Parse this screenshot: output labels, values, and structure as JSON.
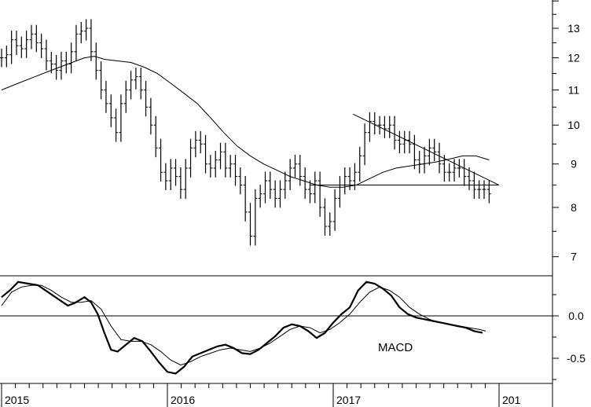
{
  "chart_data": [
    {
      "type": "bar",
      "subtype": "ohlc-weekly-price",
      "overlays": [
        "moving-average",
        "downtrend-line",
        "support-line"
      ],
      "y_scale": "log",
      "ylim": [
        6.6,
        14.2
      ],
      "y_ticks": [
        7,
        8,
        9,
        10,
        11,
        12,
        13
      ],
      "x_labels": [
        "2015",
        "2016",
        "2017",
        "201"
      ],
      "x_range": [
        2015.0,
        2018.0
      ],
      "price_path": [
        [
          2015.0,
          12.0
        ],
        [
          2015.03,
          12.1
        ],
        [
          2015.06,
          12.6
        ],
        [
          2015.09,
          12.4
        ],
        [
          2015.12,
          12.3
        ],
        [
          2015.15,
          12.6
        ],
        [
          2015.18,
          12.8
        ],
        [
          2015.21,
          12.5
        ],
        [
          2015.24,
          12.3
        ],
        [
          2015.27,
          11.9
        ],
        [
          2015.3,
          11.8
        ],
        [
          2015.33,
          11.6
        ],
        [
          2015.36,
          11.9
        ],
        [
          2015.39,
          11.8
        ],
        [
          2015.42,
          12.2
        ],
        [
          2015.45,
          12.8
        ],
        [
          2015.48,
          12.9
        ],
        [
          2015.51,
          13.0
        ],
        [
          2015.54,
          12.2
        ],
        [
          2015.57,
          11.6
        ],
        [
          2015.6,
          11.0
        ],
        [
          2015.63,
          10.6
        ],
        [
          2015.66,
          10.2
        ],
        [
          2015.69,
          9.8
        ],
        [
          2015.72,
          10.6
        ],
        [
          2015.75,
          11.0
        ],
        [
          2015.78,
          11.3
        ],
        [
          2015.81,
          11.4
        ],
        [
          2015.84,
          11.0
        ],
        [
          2015.87,
          10.5
        ],
        [
          2015.9,
          10.0
        ],
        [
          2015.93,
          9.4
        ],
        [
          2015.96,
          8.8
        ],
        [
          2015.99,
          8.6
        ],
        [
          2016.02,
          8.9
        ],
        [
          2016.05,
          8.7
        ],
        [
          2016.08,
          8.4
        ],
        [
          2016.11,
          8.9
        ],
        [
          2016.14,
          9.4
        ],
        [
          2016.17,
          9.6
        ],
        [
          2016.2,
          9.5
        ],
        [
          2016.23,
          9.0
        ],
        [
          2016.26,
          8.9
        ],
        [
          2016.29,
          9.1
        ],
        [
          2016.32,
          9.3
        ],
        [
          2016.35,
          8.9
        ],
        [
          2016.38,
          9.0
        ],
        [
          2016.41,
          8.7
        ],
        [
          2016.44,
          8.5
        ],
        [
          2016.47,
          7.9
        ],
        [
          2016.5,
          7.4
        ],
        [
          2016.53,
          8.2
        ],
        [
          2016.56,
          8.3
        ],
        [
          2016.59,
          8.6
        ],
        [
          2016.62,
          8.4
        ],
        [
          2016.65,
          8.2
        ],
        [
          2016.68,
          8.4
        ],
        [
          2016.71,
          8.6
        ],
        [
          2016.74,
          8.9
        ],
        [
          2016.77,
          9.0
        ],
        [
          2016.8,
          8.7
        ],
        [
          2016.83,
          8.4
        ],
        [
          2016.86,
          8.3
        ],
        [
          2016.89,
          8.6
        ],
        [
          2016.92,
          8.0
        ],
        [
          2016.95,
          7.6
        ],
        [
          2016.98,
          7.7
        ],
        [
          2017.01,
          8.2
        ],
        [
          2017.04,
          8.5
        ],
        [
          2017.07,
          8.7
        ],
        [
          2017.1,
          8.6
        ],
        [
          2017.13,
          8.8
        ],
        [
          2017.16,
          9.2
        ],
        [
          2017.19,
          9.8
        ],
        [
          2017.22,
          10.1
        ],
        [
          2017.25,
          10.0
        ],
        [
          2017.28,
          10.0
        ],
        [
          2017.31,
          9.9
        ],
        [
          2017.34,
          10.0
        ],
        [
          2017.37,
          9.6
        ],
        [
          2017.4,
          9.5
        ],
        [
          2017.43,
          9.6
        ],
        [
          2017.46,
          9.5
        ],
        [
          2017.49,
          9.1
        ],
        [
          2017.52,
          9.0
        ],
        [
          2017.55,
          9.2
        ],
        [
          2017.58,
          9.4
        ],
        [
          2017.61,
          9.3
        ],
        [
          2017.64,
          9.0
        ],
        [
          2017.67,
          8.8
        ],
        [
          2017.7,
          8.8
        ],
        [
          2017.73,
          8.9
        ],
        [
          2017.76,
          8.9
        ],
        [
          2017.79,
          8.7
        ],
        [
          2017.82,
          8.6
        ],
        [
          2017.85,
          8.4
        ],
        [
          2017.88,
          8.4
        ],
        [
          2017.91,
          8.4
        ],
        [
          2017.94,
          8.3
        ]
      ],
      "moving_average": [
        [
          2015.0,
          11.0
        ],
        [
          2015.1,
          11.2
        ],
        [
          2015.2,
          11.4
        ],
        [
          2015.3,
          11.6
        ],
        [
          2015.4,
          11.8
        ],
        [
          2015.5,
          12.0
        ],
        [
          2015.56,
          12.05
        ],
        [
          2015.62,
          11.95
        ],
        [
          2015.7,
          11.9
        ],
        [
          2015.78,
          11.85
        ],
        [
          2015.86,
          11.7
        ],
        [
          2015.94,
          11.5
        ],
        [
          2016.02,
          11.2
        ],
        [
          2016.1,
          10.9
        ],
        [
          2016.18,
          10.6
        ],
        [
          2016.26,
          10.2
        ],
        [
          2016.34,
          9.8
        ],
        [
          2016.42,
          9.45
        ],
        [
          2016.5,
          9.2
        ],
        [
          2016.58,
          9.0
        ],
        [
          2016.66,
          8.85
        ],
        [
          2016.74,
          8.7
        ],
        [
          2016.82,
          8.6
        ],
        [
          2016.9,
          8.5
        ],
        [
          2016.98,
          8.45
        ],
        [
          2017.06,
          8.45
        ],
        [
          2017.14,
          8.5
        ],
        [
          2017.22,
          8.65
        ],
        [
          2017.3,
          8.8
        ],
        [
          2017.38,
          8.9
        ],
        [
          2017.46,
          8.95
        ],
        [
          2017.54,
          9.0
        ],
        [
          2017.62,
          9.05
        ],
        [
          2017.7,
          9.12
        ],
        [
          2017.78,
          9.2
        ],
        [
          2017.86,
          9.2
        ],
        [
          2017.94,
          9.1
        ]
      ],
      "downtrend_line": [
        [
          2017.12,
          10.3
        ],
        [
          2018.0,
          8.5
        ]
      ],
      "support_line": [
        [
          2016.86,
          8.5
        ],
        [
          2018.0,
          8.5
        ]
      ]
    },
    {
      "type": "line",
      "title": "MACD",
      "ylim": [
        -0.78,
        0.6
      ],
      "y_ticks": [
        0.0,
        -0.5
      ],
      "y_tick_labels": [
        "0.0",
        "-0.5"
      ],
      "zero_line": true,
      "series": [
        {
          "style": "thick",
          "points": [
            [
              2015.0,
              0.22
            ],
            [
              2015.05,
              0.3
            ],
            [
              2015.1,
              0.4
            ],
            [
              2015.16,
              0.38
            ],
            [
              2015.22,
              0.36
            ],
            [
              2015.28,
              0.28
            ],
            [
              2015.34,
              0.2
            ],
            [
              2015.4,
              0.12
            ],
            [
              2015.44,
              0.15
            ],
            [
              2015.5,
              0.22
            ],
            [
              2015.54,
              0.16
            ],
            [
              2015.58,
              0.02
            ],
            [
              2015.62,
              -0.2
            ],
            [
              2015.66,
              -0.4
            ],
            [
              2015.7,
              -0.42
            ],
            [
              2015.75,
              -0.34
            ],
            [
              2015.8,
              -0.26
            ],
            [
              2015.85,
              -0.3
            ],
            [
              2015.9,
              -0.42
            ],
            [
              2015.95,
              -0.55
            ],
            [
              2016.0,
              -0.66
            ],
            [
              2016.05,
              -0.68
            ],
            [
              2016.1,
              -0.6
            ],
            [
              2016.15,
              -0.48
            ],
            [
              2016.2,
              -0.44
            ],
            [
              2016.25,
              -0.4
            ],
            [
              2016.3,
              -0.36
            ],
            [
              2016.35,
              -0.34
            ],
            [
              2016.4,
              -0.38
            ],
            [
              2016.45,
              -0.44
            ],
            [
              2016.5,
              -0.45
            ],
            [
              2016.55,
              -0.4
            ],
            [
              2016.6,
              -0.32
            ],
            [
              2016.65,
              -0.24
            ],
            [
              2016.7,
              -0.14
            ],
            [
              2016.75,
              -0.1
            ],
            [
              2016.8,
              -0.12
            ],
            [
              2016.85,
              -0.18
            ],
            [
              2016.9,
              -0.26
            ],
            [
              2016.95,
              -0.2
            ],
            [
              2017.0,
              -0.08
            ],
            [
              2017.05,
              0.02
            ],
            [
              2017.1,
              0.1
            ],
            [
              2017.15,
              0.3
            ],
            [
              2017.2,
              0.4
            ],
            [
              2017.25,
              0.38
            ],
            [
              2017.3,
              0.32
            ],
            [
              2017.35,
              0.24
            ],
            [
              2017.4,
              0.1
            ],
            [
              2017.45,
              0.02
            ],
            [
              2017.5,
              -0.02
            ],
            [
              2017.55,
              -0.04
            ],
            [
              2017.6,
              -0.06
            ],
            [
              2017.65,
              -0.08
            ],
            [
              2017.7,
              -0.1
            ],
            [
              2017.75,
              -0.12
            ],
            [
              2017.8,
              -0.14
            ],
            [
              2017.85,
              -0.18
            ],
            [
              2017.9,
              -0.2
            ]
          ]
        },
        {
          "style": "thin",
          "points": [
            [
              2015.0,
              0.12
            ],
            [
              2015.06,
              0.28
            ],
            [
              2015.12,
              0.34
            ],
            [
              2015.18,
              0.36
            ],
            [
              2015.24,
              0.36
            ],
            [
              2015.3,
              0.3
            ],
            [
              2015.36,
              0.22
            ],
            [
              2015.42,
              0.16
            ],
            [
              2015.48,
              0.16
            ],
            [
              2015.54,
              0.18
            ],
            [
              2015.6,
              0.08
            ],
            [
              2015.66,
              -0.12
            ],
            [
              2015.72,
              -0.28
            ],
            [
              2015.78,
              -0.3
            ],
            [
              2015.84,
              -0.3
            ],
            [
              2015.9,
              -0.34
            ],
            [
              2015.96,
              -0.42
            ],
            [
              2016.02,
              -0.52
            ],
            [
              2016.08,
              -0.58
            ],
            [
              2016.14,
              -0.54
            ],
            [
              2016.2,
              -0.48
            ],
            [
              2016.26,
              -0.44
            ],
            [
              2016.32,
              -0.4
            ],
            [
              2016.38,
              -0.38
            ],
            [
              2016.44,
              -0.4
            ],
            [
              2016.5,
              -0.42
            ],
            [
              2016.56,
              -0.38
            ],
            [
              2016.62,
              -0.32
            ],
            [
              2016.68,
              -0.24
            ],
            [
              2016.74,
              -0.16
            ],
            [
              2016.8,
              -0.12
            ],
            [
              2016.86,
              -0.14
            ],
            [
              2016.92,
              -0.2
            ],
            [
              2016.98,
              -0.16
            ],
            [
              2017.04,
              -0.08
            ],
            [
              2017.1,
              0.02
            ],
            [
              2017.16,
              0.16
            ],
            [
              2017.22,
              0.28
            ],
            [
              2017.28,
              0.34
            ],
            [
              2017.34,
              0.3
            ],
            [
              2017.4,
              0.22
            ],
            [
              2017.46,
              0.1
            ],
            [
              2017.52,
              0.02
            ],
            [
              2017.58,
              -0.04
            ],
            [
              2017.64,
              -0.08
            ],
            [
              2017.7,
              -0.1
            ],
            [
              2017.76,
              -0.12
            ],
            [
              2017.82,
              -0.14
            ],
            [
              2017.88,
              -0.16
            ],
            [
              2017.92,
              -0.18
            ]
          ]
        }
      ]
    }
  ]
}
